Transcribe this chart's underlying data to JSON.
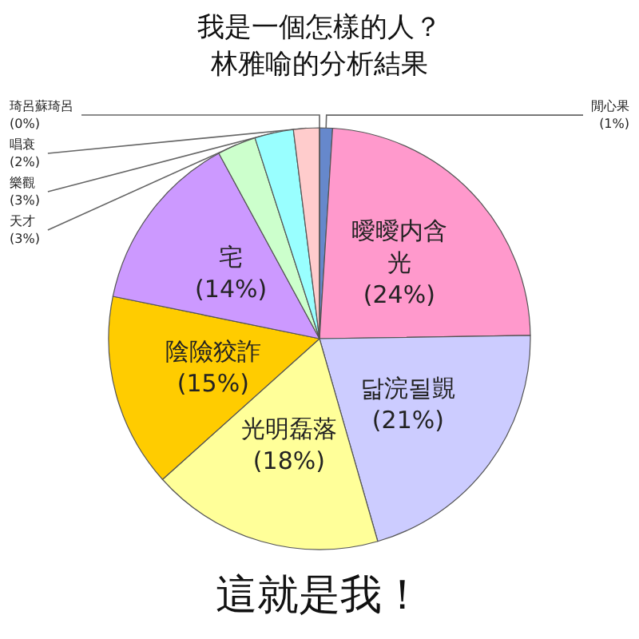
{
  "chart_data": {
    "type": "pie",
    "title": "我是一個怎樣的人？",
    "subtitle": "林雅喻的分析結果",
    "annotations": [
      "這就是我！"
    ],
    "categories": [
      "閒心果",
      "曖曖内含光",
      "닯浣될覬",
      "光明磊落",
      "陰險狡詐",
      "宅",
      "天才",
      "樂觀",
      "唱衰",
      "琦呂蘇琦呂"
    ],
    "values": [
      1,
      24,
      21,
      18,
      15,
      14,
      3,
      3,
      2,
      0
    ],
    "colors": [
      "#6688cc",
      "#ff99cc",
      "#ccccff",
      "#ffff99",
      "#ffcc00",
      "#cc99ff",
      "#ccffcc",
      "#99ffff",
      "#ffcccc",
      "#c0c0c0"
    ],
    "value_labels": [
      "(1%)",
      "(24%)",
      "(21%)",
      "(18%)",
      "(15%)",
      "(14%)",
      "(3%)",
      "(3%)",
      "(2%)",
      "(0%)"
    ],
    "legend": false
  }
}
